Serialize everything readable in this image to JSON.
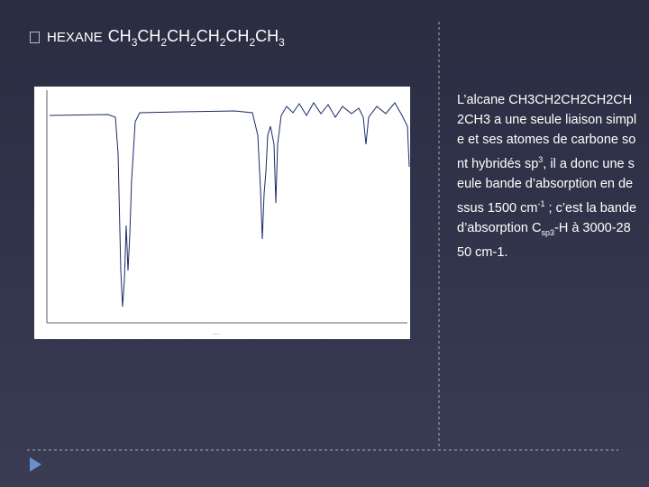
{
  "slide": {
    "title": "HEXANE",
    "formula": [
      {
        "text": "CH",
        "sub": "3"
      },
      {
        "text": "CH",
        "sub": "2"
      },
      {
        "text": "CH",
        "sub": "2"
      },
      {
        "text": "CH",
        "sub": "2"
      },
      {
        "text": "CH",
        "sub": "2"
      },
      {
        "text": "CH",
        "sub": "3"
      }
    ],
    "body": [
      {
        "text": "L’alcane CH3CH2CH2CH2CH2CH3 a une seule liaison simple et ses atomes de carbone sont hybridés sp"
      },
      {
        "sup": "3"
      },
      {
        "text": ", il a donc une seule bande d’absorption en dessus 1500 cm"
      },
      {
        "sup": "-1"
      },
      {
        "text": " ; c’est la bande d’absorption C"
      },
      {
        "sub": "sp3"
      },
      {
        "text": "-H à 3000-2850 cm-1."
      }
    ]
  }
}
